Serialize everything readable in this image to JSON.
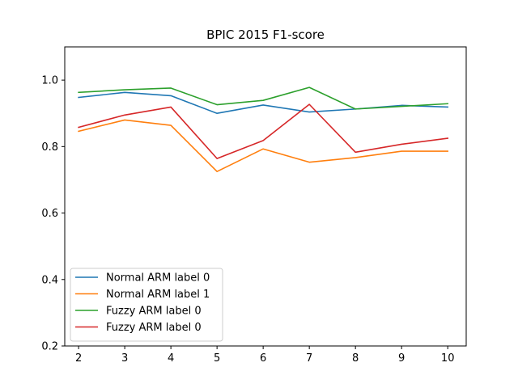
{
  "chart_data": {
    "type": "line",
    "title": "BPIC 2015 F1-score",
    "xlabel": "",
    "ylabel": "",
    "x": [
      2,
      3,
      4,
      5,
      6,
      7,
      8,
      9,
      10
    ],
    "xticks": [
      2,
      3,
      4,
      5,
      6,
      7,
      8,
      9,
      10
    ],
    "yticks": [
      0.2,
      0.4,
      0.6,
      0.8,
      1.0
    ],
    "ytick_labels": [
      "0.2",
      "0.4",
      "0.6",
      "0.8",
      "1.0"
    ],
    "xlim": [
      1.7,
      10.4
    ],
    "ylim": [
      0.2,
      1.1
    ],
    "grid": false,
    "legend_position": "lower-left",
    "series": [
      {
        "name": "Normal ARM label 0",
        "color": "#1f77b4",
        "values": [
          0.948,
          0.963,
          0.953,
          0.9,
          0.925,
          0.904,
          0.913,
          0.924,
          0.919
        ]
      },
      {
        "name": "Normal ARM label 1",
        "color": "#ff7f0e",
        "values": [
          0.846,
          0.88,
          0.864,
          0.725,
          0.793,
          0.753,
          0.767,
          0.786,
          0.786
        ]
      },
      {
        "name": "Fuzzy ARM label 0",
        "color": "#2ca02c",
        "values": [
          0.963,
          0.971,
          0.976,
          0.926,
          0.939,
          0.978,
          0.913,
          0.921,
          0.929
        ]
      },
      {
        "name": "Fuzzy ARM label 0",
        "color": "#d62728",
        "values": [
          0.858,
          0.895,
          0.919,
          0.764,
          0.818,
          0.927,
          0.783,
          0.807,
          0.825
        ]
      }
    ]
  }
}
